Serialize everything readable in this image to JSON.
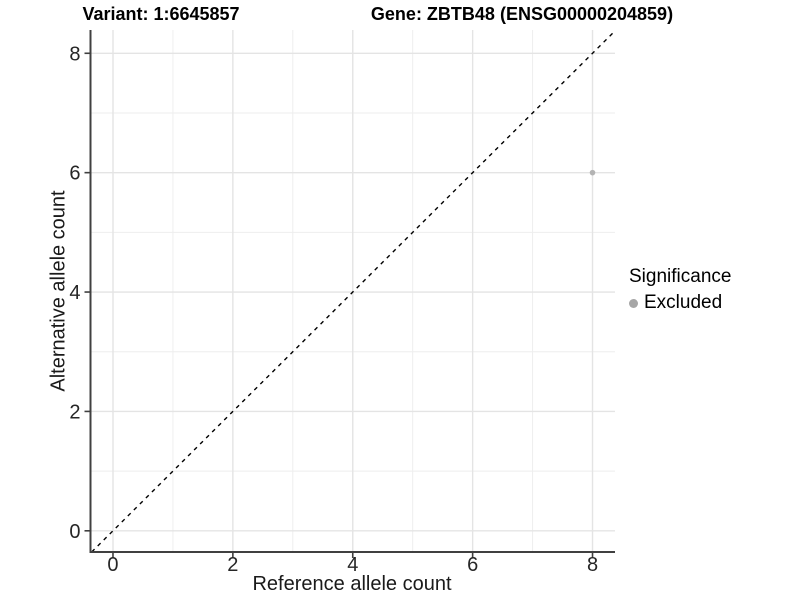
{
  "chart_data": {
    "type": "scatter",
    "title_left": "Variant: 1:6645857",
    "title_right": "Gene: ZBTB48 (ENSG00000204859)",
    "xlabel": "Reference allele count",
    "ylabel": "Alternative allele count",
    "xlim": [
      -0.375,
      8.375
    ],
    "ylim": [
      -0.355,
      8.39
    ],
    "x_ticks": [
      0,
      2,
      4,
      6,
      8
    ],
    "y_ticks": [
      0,
      2,
      4,
      6,
      8
    ],
    "x_minor_ticks": [
      1,
      3,
      5,
      7
    ],
    "y_minor_ticks": [
      1,
      3,
      5,
      7
    ],
    "grid": true,
    "points": [
      {
        "x": 8,
        "y": 6,
        "significance": "Excluded"
      }
    ],
    "reference_line": {
      "type": "identity",
      "slope": 1,
      "intercept": 0,
      "style": "dashed"
    },
    "legend": {
      "title": "Significance",
      "position": "right",
      "items": [
        {
          "label": "Excluded",
          "color": "#a6a6a6"
        }
      ]
    },
    "colors": {
      "point": "#b3b3b3",
      "reference_line": "#000000",
      "major_grid": "#e4e4e4",
      "minor_grid": "#eeeeee",
      "axis_line": "#404040",
      "tick_text": "#262626"
    }
  }
}
